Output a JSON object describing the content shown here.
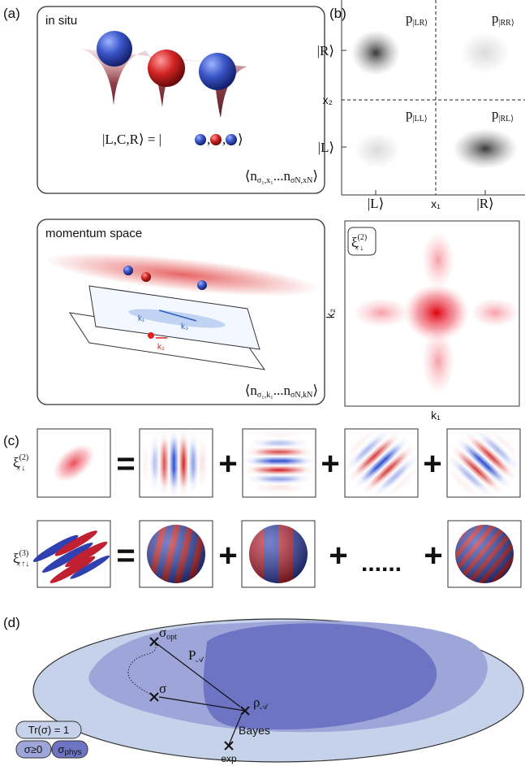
{
  "panel_labels": [
    "(a)",
    "(b)",
    "(c)",
    "(d)"
  ],
  "a": {
    "insitu_title": "in situ",
    "state": {
      "lhs": "|L,C,R⟩ = |",
      "sep": ",",
      "close": "⟩"
    },
    "insitu_corr": {
      "open": "⟨n",
      "s1": "σ₁,x₁",
      "mid": "...n",
      "s2": "σN,xN",
      "close": "⟩"
    },
    "momentum_title": "momentum space",
    "k_labels": [
      "k₁",
      "k₃",
      "k₂"
    ],
    "momentum_corr": {
      "open": "⟨n",
      "s1": "σ₁,k₁",
      "mid": "...n",
      "s2": "σN,kN",
      "close": "⟩"
    }
  },
  "b": {
    "p_labels": [
      {
        "main": "p",
        "sub": "|LR⟩"
      },
      {
        "main": "p",
        "sub": "|RR⟩"
      },
      {
        "main": "p",
        "sub": "|LL⟩"
      },
      {
        "main": "p",
        "sub": "|RL⟩"
      }
    ],
    "y_states": [
      "|R⟩",
      "|L⟩"
    ],
    "x_states": [
      "|L⟩",
      "|R⟩"
    ],
    "x2": "x₂",
    "x1": "x₁",
    "xi": {
      "main": "ξ",
      "sup": "(2)",
      "sub": "↑↓"
    },
    "k2": "k₂",
    "k1": "k₁"
  },
  "c": {
    "xi2": {
      "main": "ξ",
      "sup": "(2)",
      "sub": "↑↓"
    },
    "xi3": {
      "main": "ξ",
      "sup": "(3)",
      "sub": "↑↑↓"
    },
    "row1_ops": [
      "=",
      "+",
      "+",
      "+"
    ],
    "row2_ops": [
      "=",
      "+",
      "+",
      "+"
    ],
    "dots": "......"
  },
  "d": {
    "sigma_opt": {
      "main": "σ",
      "sub": "opt"
    },
    "P": {
      "main": "P",
      "sub": "𝒜"
    },
    "sigma": "σ",
    "rho": {
      "main": "ρ",
      "sub": "𝒜"
    },
    "bayes": "Bayes",
    "exp": "exp",
    "legend": [
      "Tr(σ) = 1",
      "σ≥0"
    ],
    "sigma_phys": {
      "main": "σ",
      "sub": "phys"
    }
  }
}
